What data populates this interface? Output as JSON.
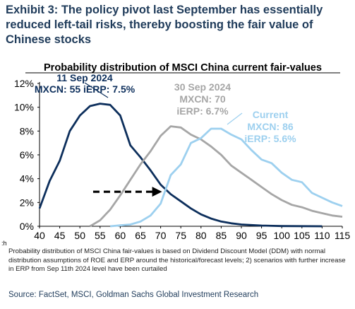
{
  "exhibit": {
    "title": "Exhibit 3: The policy pivot last September has essentially reduced left-tail risks, thereby boosting the fair value of Chinese stocks"
  },
  "chart_data": {
    "type": "line",
    "title": "Probability distribution of MSCI China current fair-values",
    "xlabel": "",
    "ylabel": "",
    "x_prefix": ":h",
    "x": [
      40,
      45,
      50,
      55,
      60,
      65,
      70,
      75,
      80,
      85,
      90,
      95,
      100,
      105,
      110,
      115
    ],
    "xlim": [
      40,
      115
    ],
    "ylim": [
      0,
      12
    ],
    "y_ticks": [
      "0%",
      "2%",
      "4%",
      "6%",
      "8%",
      "10%",
      "12%"
    ],
    "grid": false,
    "series": [
      {
        "label_lines": [
          "11 Sep 2024",
          "MXCN: 55 iERP: 7.5%"
        ],
        "color": "#0d2f5c",
        "points": [
          [
            40,
            1.5
          ],
          [
            42.5,
            3.8
          ],
          [
            45,
            5.5
          ],
          [
            47.5,
            8.0
          ],
          [
            50,
            9.3
          ],
          [
            52.5,
            10.1
          ],
          [
            55,
            10.3
          ],
          [
            57.5,
            10.2
          ],
          [
            60,
            9.3
          ],
          [
            62.5,
            6.8
          ],
          [
            65,
            5.8
          ],
          [
            67.5,
            4.7
          ],
          [
            70,
            3.5
          ],
          [
            72.5,
            2.7
          ],
          [
            75,
            2.1
          ],
          [
            77.5,
            1.5
          ],
          [
            80,
            1.0
          ],
          [
            82.5,
            0.65
          ],
          [
            85,
            0.4
          ],
          [
            87.5,
            0.25
          ],
          [
            90,
            0.15
          ],
          [
            95,
            0.06
          ],
          [
            100,
            0.02
          ],
          [
            110,
            0
          ]
        ]
      },
      {
        "label_lines": [
          "30 Sep 2024",
          "MXCN: 70",
          "iERP: 6.7%"
        ],
        "color": "#a6a6a6",
        "points": [
          [
            52.5,
            0
          ],
          [
            55,
            0.5
          ],
          [
            57.5,
            1.4
          ],
          [
            60,
            2.6
          ],
          [
            62.5,
            3.9
          ],
          [
            65,
            5.2
          ],
          [
            67.5,
            6.3
          ],
          [
            70,
            7.6
          ],
          [
            72.5,
            8.4
          ],
          [
            75,
            8.3
          ],
          [
            77.5,
            7.7
          ],
          [
            80,
            7.3
          ],
          [
            82.5,
            6.7
          ],
          [
            85,
            6.0
          ],
          [
            87.5,
            5.1
          ],
          [
            90,
            4.5
          ],
          [
            92.5,
            3.9
          ],
          [
            95,
            3.3
          ],
          [
            97.5,
            2.7
          ],
          [
            100,
            2.2
          ],
          [
            102.5,
            1.8
          ],
          [
            105,
            1.6
          ],
          [
            107.5,
            1.3
          ],
          [
            110,
            1.1
          ],
          [
            112.5,
            0.9
          ],
          [
            115,
            0.8
          ]
        ]
      },
      {
        "label_lines": [
          "Current",
          "MXCN: 86",
          "iERP: 5.6%"
        ],
        "color": "#9dd0ef",
        "points": [
          [
            57.5,
            0
          ],
          [
            60,
            0.08
          ],
          [
            62.5,
            0.15
          ],
          [
            65,
            0.4
          ],
          [
            67.5,
            0.9
          ],
          [
            70,
            1.9
          ],
          [
            72.5,
            4.3
          ],
          [
            75,
            5.2
          ],
          [
            77.5,
            7.0
          ],
          [
            80,
            7.4
          ],
          [
            82.5,
            8.2
          ],
          [
            85,
            8.2
          ],
          [
            87.5,
            7.7
          ],
          [
            90,
            7.3
          ],
          [
            92.5,
            6.4
          ],
          [
            95,
            5.6
          ],
          [
            97.5,
            5.3
          ],
          [
            100,
            4.5
          ],
          [
            102.5,
            3.9
          ],
          [
            105,
            3.7
          ],
          [
            107.5,
            2.8
          ],
          [
            110,
            2.4
          ],
          [
            112.5,
            2.0
          ],
          [
            115,
            1.7
          ]
        ]
      }
    ],
    "annotation": {
      "arrow_from": [
        58,
        2.9
      ],
      "arrow_to": [
        70,
        2.9
      ]
    }
  },
  "footnote": "Probability distribution of MSCI China fair-values is based on Dividend Discount Model (DDM) with normal distribution assumptions of ROE and ERP around the historical/forecast levels; 2) scenarios with further increase in ERP from Sep 11th 2024 level have been curtailed",
  "source": "Source: FactSet, MSCI, Goldman Sachs Global Investment Research"
}
